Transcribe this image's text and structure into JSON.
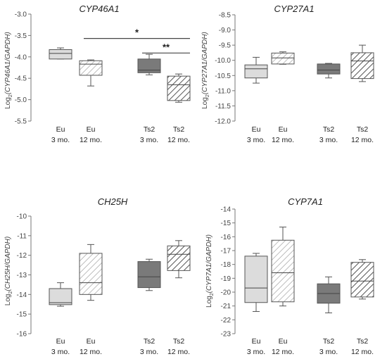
{
  "colors": {
    "eu_fill": "#dcdcdc",
    "ts2_fill": "#7a7a7a",
    "outline": "#555555",
    "hatch_line": "#555555"
  },
  "groups": [
    {
      "line1": "Eu",
      "line2": "3 mo.",
      "fill": "solid-light"
    },
    {
      "line1": "Eu",
      "line2": "12 mo.",
      "fill": "hatched-light"
    },
    {
      "line1": "Ts2",
      "line2": "3 mo.",
      "fill": "solid-dark"
    },
    {
      "line1": "Ts2",
      "line2": "12 mo.",
      "fill": "hatched-dark"
    }
  ],
  "chart_data": [
    {
      "type": "boxplot",
      "title": "CYP46A1",
      "ylabel_prefix": "Log",
      "ylabel_sub": "2",
      "ylabel_gene": "(CYP46A1/GAPDH)",
      "ylim": [
        -5.5,
        -3.0
      ],
      "yticks": [
        "-3.0",
        "-3.5",
        "-4.0",
        "-4.5",
        "-5.0",
        "-5.5"
      ],
      "yticks_values": [
        -3.0,
        -3.5,
        -4.0,
        -4.5,
        -5.0,
        -5.5
      ],
      "boxes": [
        {
          "min": -4.05,
          "q1": -4.05,
          "median": -3.92,
          "q3": -3.83,
          "max": -3.79
        },
        {
          "min": -4.68,
          "q1": -4.43,
          "median": -4.17,
          "q3": -4.09,
          "max": -4.07
        },
        {
          "min": -4.42,
          "q1": -4.37,
          "median": -4.31,
          "q3": -4.05,
          "max": -3.94
        },
        {
          "min": -5.06,
          "q1": -5.02,
          "median": -4.65,
          "q3": -4.45,
          "max": -4.4
        }
      ],
      "significance": [
        {
          "from": 1,
          "to": 3,
          "label": "*",
          "y": -3.57
        },
        {
          "from": 2,
          "to": 3,
          "label": "**",
          "y": -3.91
        }
      ]
    },
    {
      "type": "boxplot",
      "title": "CYP27A1",
      "ylabel_prefix": "Log",
      "ylabel_sub": "2",
      "ylabel_gene": "(CYP27A1/GAPDH)",
      "ylim": [
        -12.0,
        -8.5
      ],
      "yticks": [
        "-8.5",
        "-9.0",
        "-9.5",
        "-10.0",
        "-10.5",
        "-11.0",
        "-11.5",
        "-12.0"
      ],
      "yticks_values": [
        -8.5,
        -9.0,
        -9.5,
        -10.0,
        -10.5,
        -11.0,
        -11.5,
        -12.0
      ],
      "boxes": [
        {
          "min": -10.75,
          "q1": -10.58,
          "median": -10.28,
          "q3": -10.15,
          "max": -9.9
        },
        {
          "min": -10.13,
          "q1": -10.12,
          "median": -9.92,
          "q3": -9.76,
          "max": -9.72
        },
        {
          "min": -10.58,
          "q1": -10.45,
          "median": -10.32,
          "q3": -10.12,
          "max": -10.1
        },
        {
          "min": -10.7,
          "q1": -10.6,
          "median": -10.02,
          "q3": -9.75,
          "max": -9.5
        }
      ],
      "significance": []
    },
    {
      "type": "boxplot",
      "title": "CH25H",
      "ylabel_prefix": "Log",
      "ylabel_sub": "2",
      "ylabel_gene": "(CH25H/GAPDH)",
      "ylim": [
        -16,
        -10
      ],
      "yticks": [
        "-10",
        "-11",
        "-12",
        "-13",
        "-14",
        "-15",
        "-16"
      ],
      "yticks_values": [
        -10,
        -11,
        -12,
        -13,
        -14,
        -15,
        -16
      ],
      "boxes": [
        {
          "min": -14.6,
          "q1": -14.52,
          "median": -14.42,
          "q3": -13.7,
          "max": -13.4
        },
        {
          "min": -14.3,
          "q1": -14.0,
          "median": -13.4,
          "q3": -11.9,
          "max": -11.45
        },
        {
          "min": -13.8,
          "q1": -13.65,
          "median": -13.1,
          "q3": -12.32,
          "max": -12.2
        },
        {
          "min": -13.15,
          "q1": -12.78,
          "median": -11.95,
          "q3": -11.52,
          "max": -11.25
        }
      ],
      "significance": []
    },
    {
      "type": "boxplot",
      "title": "CYP7A1",
      "ylabel_prefix": "Log",
      "ylabel_sub": "2",
      "ylabel_gene": "(CYP7A1/GAPDH)",
      "ylim": [
        -23,
        -14
      ],
      "yticks": [
        "-14",
        "-15",
        "-16",
        "-17",
        "-18",
        "-19",
        "-20",
        "-21",
        "-22",
        "-23"
      ],
      "yticks_values": [
        -14,
        -15,
        -16,
        -17,
        -18,
        -19,
        -20,
        -21,
        -22,
        -23
      ],
      "boxes": [
        {
          "min": -21.4,
          "q1": -20.75,
          "median": -19.7,
          "q3": -17.4,
          "max": -17.2
        },
        {
          "min": -21.0,
          "q1": -20.7,
          "median": -18.6,
          "q3": -16.25,
          "max": -15.3
        },
        {
          "min": -21.5,
          "q1": -20.8,
          "median": -20.1,
          "q3": -19.4,
          "max": -18.9
        },
        {
          "min": -20.5,
          "q1": -20.35,
          "median": -19.2,
          "q3": -17.85,
          "max": -17.65
        }
      ],
      "significance": []
    }
  ]
}
